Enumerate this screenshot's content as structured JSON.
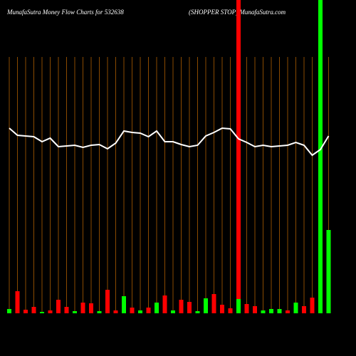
{
  "chart_data": {
    "type": "money-flow",
    "title": "MunafaSutra  Money Flow  Charts for 532638",
    "subtitle": "(SHOPPER STOP) MunafaSutra.com",
    "ylim": [
      0,
      440
    ],
    "line_color": "#ffffff",
    "grid_color": "#8a4a00",
    "line": [
      260,
      250,
      249,
      248,
      241,
      246,
      234,
      235,
      236,
      233,
      236,
      237,
      231,
      239,
      256,
      254,
      253,
      248,
      256,
      241,
      241,
      237,
      234,
      236,
      249,
      254,
      260,
      259,
      245,
      240,
      234,
      236,
      234,
      235,
      236,
      240,
      236,
      222,
      230,
      249
    ],
    "bars": [
      6,
      31,
      5,
      9,
      2,
      4,
      19,
      9,
      3,
      15,
      14,
      3,
      33,
      4,
      24,
      8,
      4,
      8,
      15,
      25,
      4,
      19,
      16,
      3,
      21,
      27,
      12,
      7,
      20,
      13,
      10,
      4,
      6,
      6,
      4,
      15,
      10,
      22,
      2,
      117
    ],
    "bar_colors": [
      "#00ff00",
      "#ff0000",
      "#ff0000",
      "#ff0000",
      "#00ff00",
      "#ff0000",
      "#ff0000",
      "#ff0000",
      "#00ff00",
      "#ff0000",
      "#ff0000",
      "#00ff00",
      "#ff0000",
      "#ff0000",
      "#00ff00",
      "#ff0000",
      "#00ff00",
      "#ff0000",
      "#00ff00",
      "#ff0000",
      "#00ff00",
      "#ff0000",
      "#ff0000",
      "#00ff00",
      "#00ff00",
      "#ff0000",
      "#ff0000",
      "#ff0000",
      "#00ff00",
      "#ff0000",
      "#ff0000",
      "#00ff00",
      "#00ff00",
      "#00ff00",
      "#ff0000",
      "#00ff00",
      "#ff0000",
      "#ff0000",
      "#00ff00",
      "#00ff00"
    ],
    "highlights": [
      {
        "index": 28,
        "color": "#ff0000"
      },
      {
        "index": 38,
        "color": "#00ff00"
      }
    ]
  }
}
